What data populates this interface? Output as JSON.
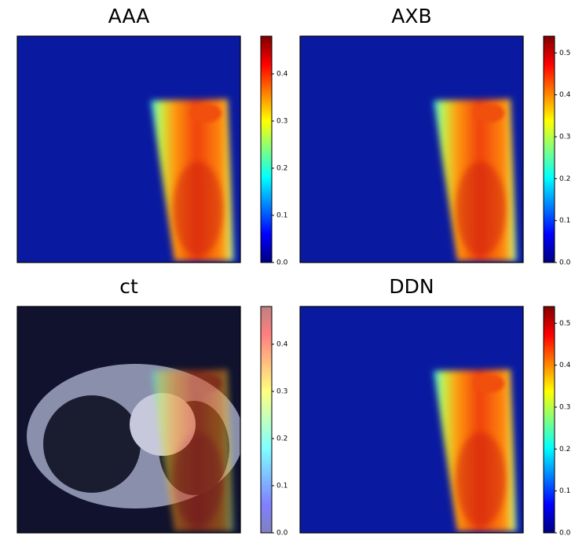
{
  "chart_data": [
    {
      "type": "heatmap",
      "title": "AAA",
      "colormap": "jet",
      "ylim": [
        0,
        0.48
      ],
      "yticks": [
        {
          "value": 0,
          "label": "0.0"
        },
        0.1,
        0.2,
        0.3,
        0.4
      ]
    },
    {
      "type": "heatmap",
      "title": "AXB",
      "colormap": "jet",
      "ylim": [
        0,
        0.54
      ],
      "yticks": [
        {
          "value": 0,
          "label": "0.0"
        },
        0.1,
        0.2,
        0.3,
        0.4,
        0.5
      ]
    },
    {
      "type": "overlay",
      "title": "ct",
      "colormap": "jet",
      "ylim": [
        0,
        0.48
      ],
      "yticks": [
        {
          "value": 0,
          "label": "0.0"
        },
        0.1,
        0.2,
        0.3,
        0.4
      ]
    },
    {
      "type": "heatmap",
      "title": "DDN",
      "colormap": "jet",
      "ylim": [
        0,
        0.54
      ],
      "yticks": [
        {
          "value": 0,
          "label": "0.0"
        },
        0.1,
        0.2,
        0.3,
        0.4,
        0.5
      ]
    }
  ]
}
